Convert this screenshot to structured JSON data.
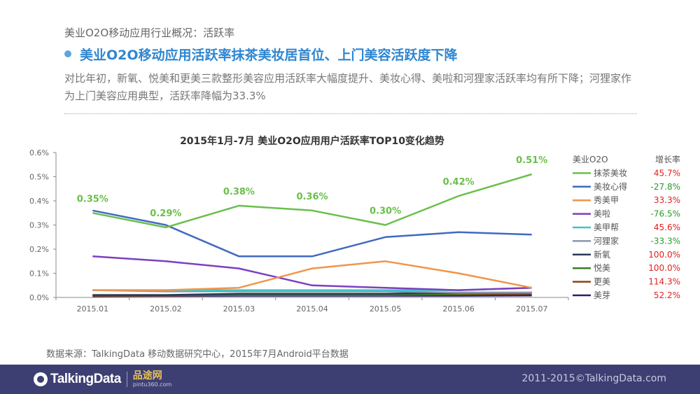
{
  "page": {
    "breadcrumb": "美业O2O移动应用行业概况：活跃率",
    "headline": "美业O2O移动应用活跃率抹茶美妆居首位、上门美容活跃度下降",
    "description": "对比年初，新氧、悦美和更美三款整形美容应用活跃率大幅度提升、美妆心得、美啦和河狸家活跃率均有所下降；河狸家作为上门美容应用典型，活跃率降幅为33.3%",
    "source": "数据来源：TalkingData 移动数据研究中心，2015年7月Android平台数据",
    "logo": "TalkingData",
    "partner_name": "品途网",
    "partner_url": "pintu360.com",
    "copyright": "2011-2015©TalkingData.com"
  },
  "colors": {
    "headline": "#2e86d1",
    "bullet": "#5ba6e0",
    "footer": "#3d3f73",
    "growth_positive": "#e02020",
    "growth_negative": "#2a9a2a",
    "axis": "#888888"
  },
  "chart_data": {
    "type": "line",
    "title": "2015年1月-7月 美业O2O应用用户活跃率TOP10变化趋势",
    "xlabel": "",
    "ylabel": "",
    "categories": [
      "2015.01",
      "2015.02",
      "2015.03",
      "2015.04",
      "2015.05",
      "2015.06",
      "2015.07"
    ],
    "ylim": [
      0,
      0.6
    ],
    "yticks": [
      "0.0%",
      "0.1%",
      "0.2%",
      "0.3%",
      "0.4%",
      "0.5%",
      "0.6%"
    ],
    "legend_header_name": "美业O2O",
    "legend_header_growth": "增长率",
    "legend_position": "right",
    "series": [
      {
        "name": "抹茶美妆",
        "color": "#6abf4b",
        "growth": "45.7%",
        "values": [
          0.35,
          0.29,
          0.38,
          0.36,
          0.3,
          0.42,
          0.51
        ],
        "labels": [
          "0.35%",
          "0.29%",
          "0.38%",
          "0.36%",
          "0.30%",
          "0.42%",
          "0.51%"
        ]
      },
      {
        "name": "美妆心得",
        "color": "#4169c1",
        "growth": "-27.8%",
        "values": [
          0.36,
          0.3,
          0.17,
          0.17,
          0.25,
          0.27,
          0.26
        ]
      },
      {
        "name": "秀美甲",
        "color": "#f0954b",
        "growth": "33.3%",
        "values": [
          0.03,
          0.03,
          0.04,
          0.12,
          0.15,
          0.1,
          0.04
        ]
      },
      {
        "name": "美啦",
        "color": "#7e3fbf",
        "growth": "-76.5%",
        "values": [
          0.17,
          0.15,
          0.12,
          0.05,
          0.04,
          0.03,
          0.04
        ]
      },
      {
        "name": "美甲帮",
        "color": "#3cc6cc",
        "growth": "45.6%",
        "values": [
          0.03,
          0.03,
          0.03,
          0.03,
          0.03,
          0.03,
          0.04
        ]
      },
      {
        "name": "河狸家",
        "color": "#8897a8",
        "growth": "-33.3%",
        "values": [
          0.03,
          0.025,
          0.025,
          0.025,
          0.025,
          0.02,
          0.02
        ]
      },
      {
        "name": "新氧",
        "color": "#283a58",
        "growth": "100.0%",
        "values": [
          0.01,
          0.01,
          0.015,
          0.015,
          0.015,
          0.02,
          0.02
        ]
      },
      {
        "name": "悦美",
        "color": "#3b7d2a",
        "growth": "100.0%",
        "values": [
          0.01,
          0.01,
          0.01,
          0.01,
          0.01,
          0.015,
          0.02
        ]
      },
      {
        "name": "更美",
        "color": "#8b4513",
        "growth": "114.3%",
        "values": [
          0.007,
          0.008,
          0.01,
          0.01,
          0.01,
          0.012,
          0.015
        ]
      },
      {
        "name": "美芽",
        "color": "#2a1d6a",
        "growth": "52.2%",
        "values": [
          0.005,
          0.006,
          0.007,
          0.007,
          0.007,
          0.007,
          0.008
        ]
      }
    ]
  }
}
